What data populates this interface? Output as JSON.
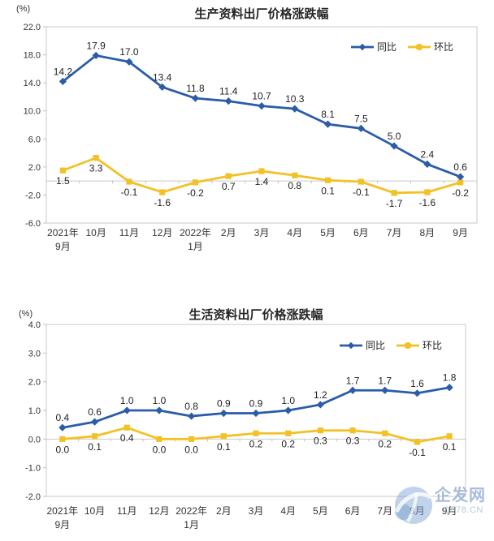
{
  "watermark": {
    "site_name": "企发网",
    "site_url": "QF78.CN",
    "logo_color": "#7fa6d6"
  },
  "chart_data": [
    {
      "type": "line",
      "title": "生产资料出厂价格涨跌幅",
      "ylabel": "(%)",
      "xlabel": "",
      "categories": [
        "2021年\n9月",
        "10月",
        "11月",
        "12月",
        "2022年\n1月",
        "2月",
        "3月",
        "4月",
        "5月",
        "6月",
        "7月",
        "8月",
        "9月"
      ],
      "series": [
        {
          "name": "同比",
          "color": "#2a5ca8",
          "marker": "diamond",
          "values": [
            14.2,
            17.9,
            17.0,
            13.4,
            11.8,
            11.4,
            10.7,
            10.3,
            8.1,
            7.5,
            5.0,
            2.4,
            0.6
          ]
        },
        {
          "name": "环比",
          "color": "#f3c125",
          "marker": "square",
          "values": [
            1.5,
            3.3,
            -0.1,
            -1.6,
            -0.2,
            0.7,
            1.4,
            0.8,
            0.1,
            -0.1,
            -1.7,
            -1.6,
            -0.2
          ]
        }
      ],
      "ylim": [
        -6,
        22
      ],
      "ytick_step": 4,
      "grid": false,
      "data_labels": true,
      "legend_position": "top-right"
    },
    {
      "type": "line",
      "title": "生活资料出厂价格涨跌幅",
      "ylabel": "(%)",
      "xlabel": "",
      "categories": [
        "2021年\n9月",
        "10月",
        "11月",
        "12月",
        "2022年\n1月",
        "2月",
        "3月",
        "4月",
        "5月",
        "6月",
        "7月",
        "8月",
        "9月"
      ],
      "series": [
        {
          "name": "同比",
          "color": "#2a5ca8",
          "marker": "diamond",
          "values": [
            0.4,
            0.6,
            1.0,
            1.0,
            0.8,
            0.9,
            0.9,
            1.0,
            1.2,
            1.7,
            1.7,
            1.6,
            1.8
          ]
        },
        {
          "name": "环比",
          "color": "#f3c125",
          "marker": "square",
          "values": [
            0.0,
            0.1,
            0.4,
            0.0,
            0.0,
            0.1,
            0.2,
            0.2,
            0.3,
            0.3,
            0.2,
            -0.1,
            0.1
          ]
        }
      ],
      "ylim": [
        -2,
        4
      ],
      "ytick_step": 1,
      "grid": false,
      "data_labels": true,
      "legend_position": "top-right"
    }
  ]
}
